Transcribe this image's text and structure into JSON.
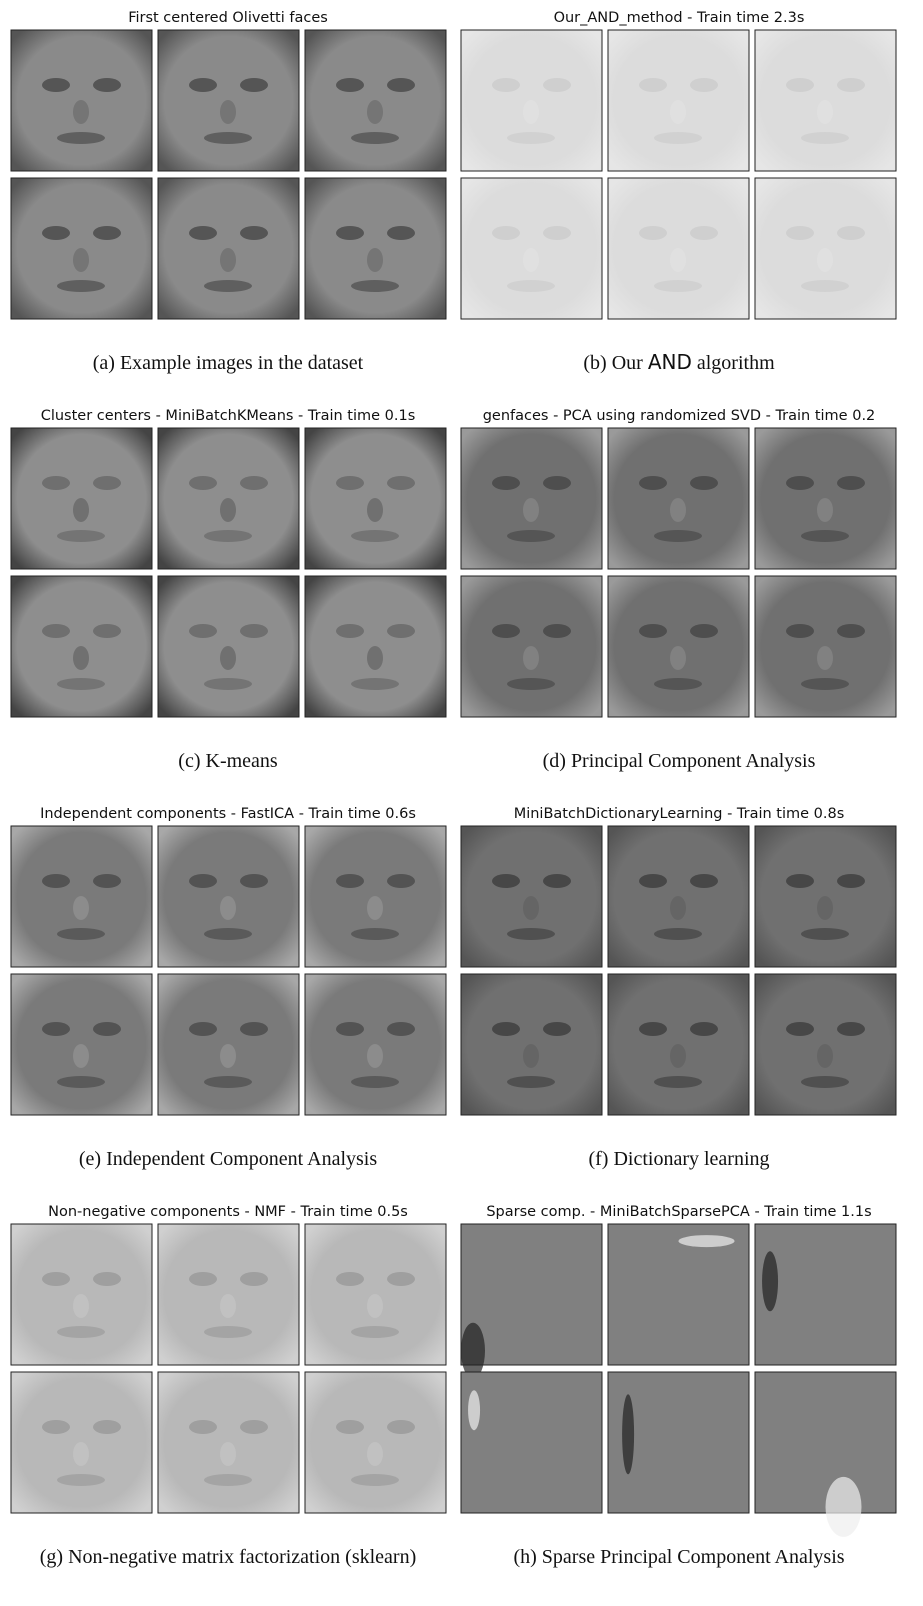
{
  "panels": [
    {
      "title": "First centered Olivetti faces",
      "label": "(a)",
      "caption": "Example images in the dataset"
    },
    {
      "title": "Our_AND_method - Train time 2.3s",
      "label": "(b)",
      "caption": "Our",
      "caption_sans": "AND",
      "caption_after": "algorithm"
    },
    {
      "title": "Cluster centers - MiniBatchKMeans - Train time 0.1s",
      "label": "(c)",
      "caption": "K-means"
    },
    {
      "title": "genfaces - PCA using randomized SVD - Train time 0.2",
      "label": "(d)",
      "caption": "Principal Component Analysis"
    },
    {
      "title": "Independent components - FastICA - Train time 0.6s",
      "label": "(e)",
      "caption": "Independent Component Analysis"
    },
    {
      "title": "MiniBatchDictionaryLearning - Train time 0.8s",
      "label": "(f)",
      "caption": "Dictionary learning"
    },
    {
      "title": "Non-negative components - NMF - Train time 0.5s",
      "label": "(g)",
      "caption": "Non-negative matrix factorization (sklearn)"
    },
    {
      "title": "Sparse comp. - MiniBatchSparsePCA - Train time 1.1s",
      "label": "(h)",
      "caption": "Sparse Principal Component Analysis"
    }
  ]
}
